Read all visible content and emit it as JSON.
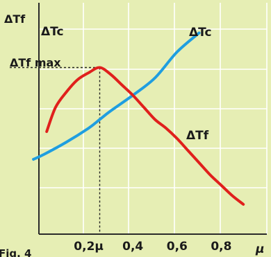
{
  "figure_label": "Fig. 4",
  "chart_data": {
    "type": "line",
    "xlabel": "μ",
    "ylabel": "ΔTf",
    "x_ticks": [
      "0,2μ",
      "0,4",
      "0,6",
      "0,8"
    ],
    "x_tick_values": [
      0.2,
      0.4,
      0.6,
      0.8
    ],
    "xlim": [
      -0.05,
      0.95
    ],
    "ylim": [
      0,
      1
    ],
    "grid": true,
    "legend": "none",
    "annotations": {
      "tc_inset": "ΔTc",
      "tf_max": "ΔTf max",
      "tc_curve": "ΔTc",
      "tf_curve": "ΔTf"
    },
    "peak": {
      "x": 0.25,
      "y": 0.85
    },
    "series": [
      {
        "name": "ΔTc",
        "color": "#1f9ee0",
        "x": [
          -0.05,
          0.0,
          0.1,
          0.2,
          0.25,
          0.3,
          0.4,
          0.5,
          0.6,
          0.7
        ],
        "y": [
          0.32,
          0.35,
          0.42,
          0.5,
          0.55,
          0.6,
          0.69,
          0.79,
          0.94,
          1.05
        ]
      },
      {
        "name": "ΔTf",
        "color": "#e0201c",
        "x": [
          0.01,
          0.05,
          0.1,
          0.15,
          0.2,
          0.25,
          0.3,
          0.35,
          0.4,
          0.45,
          0.5,
          0.55,
          0.6,
          0.65,
          0.7,
          0.75,
          0.8,
          0.85,
          0.9
        ],
        "y": [
          0.48,
          0.62,
          0.71,
          0.78,
          0.82,
          0.85,
          0.81,
          0.75,
          0.69,
          0.62,
          0.55,
          0.5,
          0.44,
          0.37,
          0.3,
          0.23,
          0.17,
          0.11,
          0.06
        ]
      }
    ]
  }
}
